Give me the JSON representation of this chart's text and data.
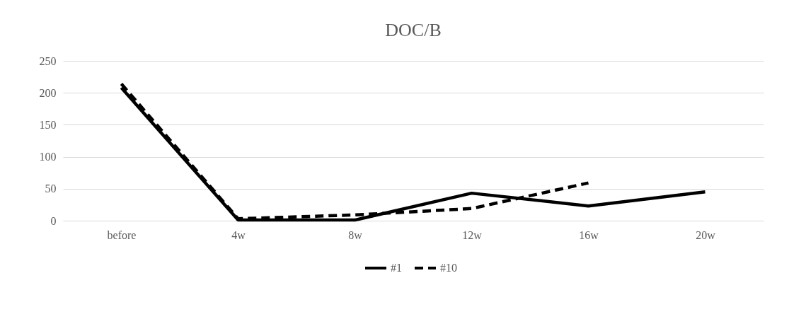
{
  "chart_data": {
    "type": "line",
    "title": "DOC/B",
    "categories": [
      "before",
      "4w",
      "8w",
      "12w",
      "16w",
      "20w"
    ],
    "series": [
      {
        "name": "#1",
        "color": "#000000",
        "line_style": "solid",
        "values": [
          208,
          1,
          1,
          43,
          23,
          45
        ]
      },
      {
        "name": "#10",
        "color": "#000000",
        "line_style": "dashed",
        "values": [
          214,
          3,
          9,
          19,
          59,
          null
        ]
      }
    ],
    "ylim": [
      0,
      250
    ],
    "yticks": [
      0,
      50,
      100,
      150,
      200,
      250
    ],
    "grid": "y",
    "legend": "bottom",
    "marker": "none"
  }
}
